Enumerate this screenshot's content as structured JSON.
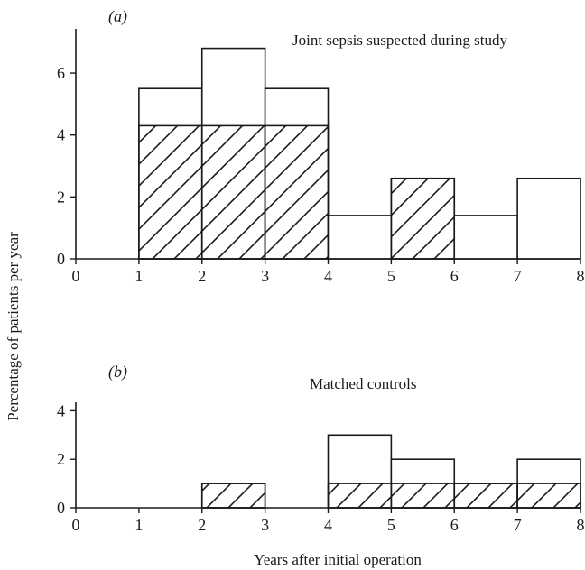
{
  "figure": {
    "ylabel": "Percentage of patients per year",
    "xlabel": "Years after initial operation"
  },
  "chart_data": [
    {
      "type": "bar",
      "panel_label": "(a)",
      "title": "Joint sepsis suspected during study",
      "x_ticks": [
        "0",
        "1",
        "2",
        "3",
        "4",
        "5",
        "6",
        "7",
        "8"
      ],
      "y_ticks": [
        "0",
        "2",
        "4",
        "6"
      ],
      "xlim": [
        0,
        8
      ],
      "ylim": [
        0,
        7.4
      ],
      "bins": [
        {
          "x0": 1,
          "x1": 2,
          "total": 5.5,
          "hatched": 4.3
        },
        {
          "x0": 2,
          "x1": 3,
          "total": 6.8,
          "hatched": 4.3
        },
        {
          "x0": 3,
          "x1": 4,
          "total": 5.5,
          "hatched": 4.3
        },
        {
          "x0": 4,
          "x1": 5,
          "total": 1.4,
          "hatched": 0
        },
        {
          "x0": 5,
          "x1": 6,
          "total": 2.6,
          "hatched": 2.6
        },
        {
          "x0": 6,
          "x1": 7,
          "total": 1.4,
          "hatched": 0
        },
        {
          "x0": 7,
          "x1": 8,
          "total": 2.6,
          "hatched": 0
        }
      ]
    },
    {
      "type": "bar",
      "panel_label": "(b)",
      "title": "Matched controls",
      "x_ticks": [
        "0",
        "1",
        "2",
        "3",
        "4",
        "5",
        "6",
        "7",
        "8"
      ],
      "y_ticks": [
        "0",
        "2",
        "4"
      ],
      "xlim": [
        0,
        8
      ],
      "ylim": [
        0,
        4.2
      ],
      "bins": [
        {
          "x0": 2,
          "x1": 3,
          "total": 1,
          "hatched": 1
        },
        {
          "x0": 4,
          "x1": 5,
          "total": 3,
          "hatched": 1
        },
        {
          "x0": 5,
          "x1": 6,
          "total": 2,
          "hatched": 1
        },
        {
          "x0": 6,
          "x1": 7,
          "total": 1,
          "hatched": 1
        },
        {
          "x0": 7,
          "x1": 8,
          "total": 2,
          "hatched": 1
        }
      ]
    }
  ]
}
